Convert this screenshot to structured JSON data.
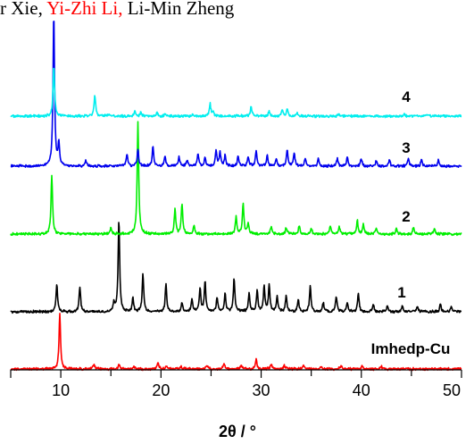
{
  "header": {
    "parts": [
      {
        "text": "r Xie, ",
        "color": "#000000"
      },
      {
        "text": "Yi-Zhi Li, ",
        "color": "#ff0000"
      },
      {
        "text": "Li-Min Zheng",
        "color": "#000000"
      }
    ]
  },
  "chart_data": {
    "type": "line",
    "xlabel": "2θ / °",
    "ylabel": "",
    "xlim": [
      5,
      50
    ],
    "x_ticks": [
      10,
      20,
      30,
      40,
      50
    ],
    "grid": false,
    "y_axis_shown": false,
    "series": [
      {
        "name": "Imhedp-Cu",
        "color": "#ff0000",
        "peaks": [
          [
            9.9,
            100
          ],
          [
            13.3,
            8
          ],
          [
            15.8,
            8
          ],
          [
            17.3,
            5
          ],
          [
            19.7,
            13
          ],
          [
            20.5,
            6
          ],
          [
            22.0,
            4
          ],
          [
            24.6,
            6
          ],
          [
            26.3,
            10
          ],
          [
            28.0,
            7
          ],
          [
            29.5,
            18
          ],
          [
            31.0,
            9
          ],
          [
            32.3,
            7
          ],
          [
            34.2,
            8
          ],
          [
            36.0,
            5
          ],
          [
            38.0,
            6
          ],
          [
            40.1,
            5
          ],
          [
            42.0,
            4
          ]
        ]
      },
      {
        "name": "1",
        "color": "#000000",
        "peaks": [
          [
            9.6,
            30
          ],
          [
            11.9,
            27
          ],
          [
            15.3,
            10
          ],
          [
            15.8,
            100
          ],
          [
            17.2,
            15
          ],
          [
            18.2,
            41
          ],
          [
            20.5,
            30
          ],
          [
            22.1,
            10
          ],
          [
            23.1,
            13
          ],
          [
            23.9,
            25
          ],
          [
            24.4,
            33
          ],
          [
            25.6,
            15
          ],
          [
            26.4,
            20
          ],
          [
            27.3,
            36
          ],
          [
            28.8,
            20
          ],
          [
            29.6,
            23
          ],
          [
            30.3,
            27
          ],
          [
            30.8,
            28
          ],
          [
            31.6,
            17
          ],
          [
            32.5,
            17
          ],
          [
            33.7,
            13
          ],
          [
            34.9,
            27
          ],
          [
            36.2,
            10
          ],
          [
            37.5,
            17
          ],
          [
            38.6,
            10
          ],
          [
            39.7,
            20
          ],
          [
            41.2,
            8
          ],
          [
            42.6,
            6
          ],
          [
            44.1,
            6
          ],
          [
            45.6,
            6
          ],
          [
            47.9,
            8
          ],
          [
            49.0,
            6
          ]
        ]
      },
      {
        "name": "2",
        "color": "#00ee00",
        "peaks": [
          [
            9.1,
            53
          ],
          [
            15.0,
            6
          ],
          [
            17.7,
            100
          ],
          [
            21.4,
            22
          ],
          [
            22.1,
            27
          ],
          [
            23.3,
            8
          ],
          [
            27.5,
            15
          ],
          [
            28.2,
            27
          ],
          [
            28.7,
            10
          ],
          [
            31.0,
            7
          ],
          [
            32.5,
            6
          ],
          [
            33.8,
            7
          ],
          [
            35.0,
            5
          ],
          [
            36.9,
            7
          ],
          [
            37.8,
            6
          ],
          [
            39.6,
            12
          ],
          [
            40.2,
            9
          ],
          [
            41.5,
            5
          ],
          [
            43.5,
            5
          ],
          [
            45.2,
            6
          ],
          [
            47.3,
            5
          ]
        ]
      },
      {
        "name": "3",
        "color": "#0000ee",
        "peaks": [
          [
            9.3,
            100
          ],
          [
            9.8,
            14
          ],
          [
            12.5,
            4
          ],
          [
            16.6,
            8
          ],
          [
            17.7,
            11
          ],
          [
            19.2,
            13
          ],
          [
            20.4,
            6
          ],
          [
            21.8,
            6
          ],
          [
            22.6,
            4
          ],
          [
            23.7,
            8
          ],
          [
            24.4,
            6
          ],
          [
            25.5,
            10
          ],
          [
            25.9,
            9
          ],
          [
            26.4,
            7
          ],
          [
            27.7,
            7
          ],
          [
            28.7,
            6
          ],
          [
            29.5,
            10
          ],
          [
            30.6,
            7
          ],
          [
            31.5,
            5
          ],
          [
            32.6,
            11
          ],
          [
            33.3,
            9
          ],
          [
            34.4,
            5
          ],
          [
            35.7,
            5
          ],
          [
            37.6,
            5
          ],
          [
            38.6,
            6
          ],
          [
            40.0,
            5
          ],
          [
            41.5,
            4
          ],
          [
            42.8,
            4
          ],
          [
            44.7,
            5
          ],
          [
            46.0,
            4
          ],
          [
            47.7,
            4
          ]
        ]
      },
      {
        "name": "4",
        "color": "#00eeee",
        "peaks": [
          [
            9.3,
            100
          ],
          [
            13.4,
            42
          ],
          [
            14.7,
            4
          ],
          [
            17.4,
            9
          ],
          [
            18.0,
            8
          ],
          [
            19.6,
            6
          ],
          [
            20.4,
            4
          ],
          [
            23.2,
            4
          ],
          [
            24.9,
            25
          ],
          [
            25.2,
            8
          ],
          [
            29.0,
            19
          ],
          [
            30.8,
            10
          ],
          [
            32.1,
            13
          ],
          [
            32.6,
            14
          ],
          [
            33.6,
            6
          ],
          [
            37.7,
            4
          ],
          [
            44.3,
            4
          ],
          [
            46.5,
            4
          ]
        ]
      }
    ]
  }
}
